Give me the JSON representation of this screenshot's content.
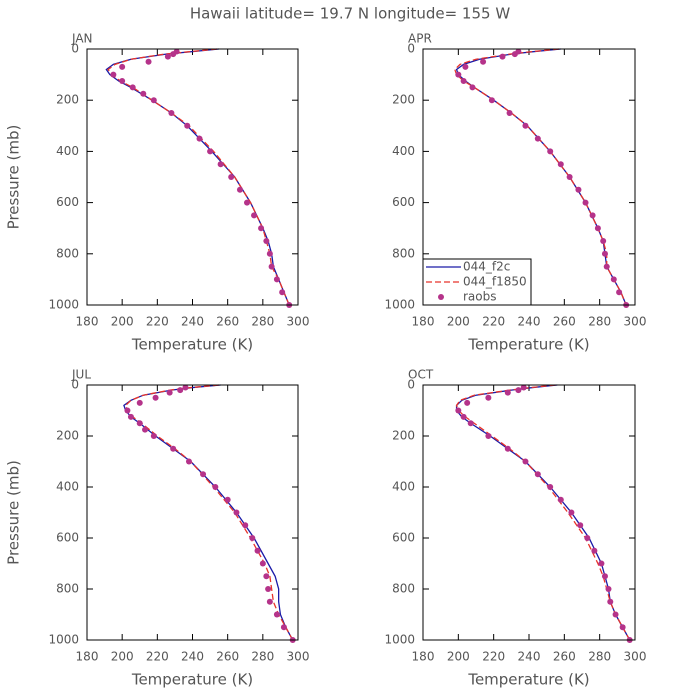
{
  "title": "Hawaii  latitude= 19.7 N longitude= 155 W",
  "chart_data": [
    {
      "type": "profile",
      "title": "JAN",
      "ylabel": "Pressure (mb)",
      "xlabel": "Temperature (K)",
      "xlim": [
        180,
        300
      ],
      "xticks": [
        180,
        200,
        220,
        240,
        260,
        280,
        300
      ],
      "ylim": [
        1000,
        0
      ],
      "yticks": [
        0,
        200,
        400,
        600,
        800,
        1000
      ],
      "series": [
        {
          "color": "#1a1aa8",
          "style": "solid",
          "x": [
            255,
            240,
            225,
            205,
            195,
            191,
            193,
            198,
            205,
            217,
            228,
            237,
            251,
            264,
            273,
            280,
            283,
            285,
            286,
            289,
            292,
            295
          ],
          "y": [
            0,
            10,
            20,
            40,
            60,
            80,
            100,
            125,
            150,
            200,
            250,
            300,
            400,
            500,
            600,
            700,
            750,
            800,
            850,
            900,
            950,
            1000
          ]
        },
        {
          "color": "#e8332a",
          "style": "dashed",
          "x": [
            254,
            239,
            224,
            205,
            196,
            192,
            194,
            199,
            206,
            217,
            228,
            238,
            252,
            264,
            273,
            280,
            282,
            284,
            285,
            289,
            292,
            295
          ],
          "y": [
            0,
            10,
            20,
            40,
            60,
            80,
            100,
            125,
            150,
            200,
            250,
            300,
            400,
            500,
            600,
            700,
            750,
            800,
            850,
            900,
            950,
            1000
          ]
        },
        {
          "color": "#b5338a",
          "style": "marker",
          "x": [
            231,
            229,
            226,
            215,
            200,
            195,
            200,
            206,
            212,
            218,
            228,
            237,
            244,
            250,
            256,
            262,
            267,
            271,
            275,
            279,
            282,
            284,
            285,
            288,
            291,
            295
          ],
          "y": [
            10,
            20,
            30,
            50,
            70,
            100,
            125,
            150,
            175,
            200,
            250,
            300,
            350,
            400,
            450,
            500,
            550,
            600,
            650,
            700,
            750,
            800,
            850,
            900,
            950,
            1000
          ]
        }
      ]
    },
    {
      "type": "profile",
      "title": "APR",
      "xlabel": "Temperature (K)",
      "legend": "lower left",
      "xlim": [
        180,
        300
      ],
      "xticks": [
        180,
        200,
        220,
        240,
        260,
        280,
        300
      ],
      "ylim": [
        1000,
        0
      ],
      "yticks": [
        0,
        200,
        400,
        600,
        800,
        1000
      ],
      "series": [
        {
          "name": "044_f2c",
          "color": "#1a1aa8",
          "style": "solid",
          "x": [
            258,
            243,
            230,
            212,
            203,
            199,
            200,
            204,
            209,
            220,
            230,
            239,
            252,
            263,
            272,
            279,
            282,
            283,
            284,
            288,
            292,
            295
          ],
          "y": [
            0,
            10,
            20,
            40,
            60,
            80,
            100,
            125,
            150,
            200,
            250,
            300,
            400,
            500,
            600,
            700,
            750,
            800,
            850,
            900,
            950,
            1000
          ]
        },
        {
          "name": "044_f1850",
          "color": "#e8332a",
          "style": "dashed",
          "x": [
            257,
            242,
            229,
            210,
            201,
            198,
            199,
            203,
            209,
            220,
            230,
            239,
            252,
            263,
            272,
            279,
            282,
            284,
            284,
            288,
            292,
            295
          ],
          "y": [
            0,
            10,
            20,
            40,
            60,
            80,
            100,
            125,
            150,
            200,
            250,
            300,
            400,
            500,
            600,
            700,
            750,
            800,
            850,
            900,
            950,
            1000
          ]
        },
        {
          "name": "raobs",
          "color": "#b5338a",
          "style": "marker",
          "x": [
            234,
            232,
            225,
            214,
            204,
            200,
            203,
            208,
            219,
            229,
            238,
            245,
            252,
            258,
            263,
            268,
            272,
            276,
            279,
            282,
            283,
            284,
            288,
            291,
            295
          ],
          "y": [
            10,
            20,
            30,
            50,
            70,
            100,
            125,
            150,
            200,
            250,
            300,
            350,
            400,
            450,
            500,
            550,
            600,
            650,
            700,
            750,
            800,
            850,
            900,
            950,
            1000
          ]
        }
      ]
    },
    {
      "type": "profile",
      "title": "JUL",
      "ylabel": "Pressure (mb)",
      "xlabel": "Temperature (K)",
      "xlim": [
        180,
        300
      ],
      "xticks": [
        180,
        200,
        220,
        240,
        260,
        280,
        300
      ],
      "ylim": [
        1000,
        0
      ],
      "yticks": [
        0,
        200,
        400,
        600,
        800,
        1000
      ],
      "series": [
        {
          "color": "#1a1aa8",
          "style": "solid",
          "x": [
            256,
            240,
            228,
            212,
            205,
            201,
            202,
            205,
            210,
            219,
            229,
            239,
            253,
            265,
            275,
            283,
            287,
            289,
            289,
            290,
            293,
            297
          ],
          "y": [
            0,
            10,
            20,
            40,
            60,
            80,
            100,
            125,
            150,
            200,
            250,
            300,
            400,
            500,
            600,
            700,
            750,
            800,
            850,
            900,
            950,
            1000
          ]
        },
        {
          "color": "#e8332a",
          "style": "dashed",
          "x": [
            255,
            239,
            227,
            212,
            205,
            202,
            203,
            206,
            211,
            220,
            230,
            239,
            252,
            264,
            273,
            281,
            284,
            285,
            286,
            289,
            293,
            297
          ],
          "y": [
            0,
            10,
            20,
            40,
            60,
            80,
            100,
            125,
            150,
            200,
            250,
            300,
            400,
            500,
            600,
            700,
            750,
            800,
            850,
            900,
            950,
            1000
          ]
        },
        {
          "color": "#b5338a",
          "style": "marker",
          "x": [
            236,
            233,
            227,
            219,
            210,
            203,
            205,
            210,
            213,
            218,
            229,
            238,
            246,
            253,
            260,
            265,
            270,
            274,
            277,
            280,
            282,
            283,
            284,
            288,
            292,
            297
          ],
          "y": [
            10,
            20,
            30,
            50,
            70,
            100,
            125,
            150,
            175,
            200,
            250,
            300,
            350,
            400,
            450,
            500,
            550,
            600,
            650,
            700,
            750,
            800,
            850,
            900,
            950,
            1000
          ]
        }
      ]
    },
    {
      "type": "profile",
      "title": "OCT",
      "xlabel": "Temperature (K)",
      "xlim": [
        180,
        300
      ],
      "xticks": [
        180,
        200,
        220,
        240,
        260,
        280,
        300
      ],
      "ylim": [
        1000,
        0
      ],
      "yticks": [
        0,
        200,
        400,
        600,
        800,
        1000
      ],
      "series": [
        {
          "color": "#1a1aa8",
          "style": "solid",
          "x": [
            256,
            242,
            230,
            210,
            202,
            199,
            199,
            202,
            207,
            218,
            228,
            238,
            252,
            264,
            274,
            281,
            283,
            285,
            286,
            289,
            293,
            297
          ],
          "y": [
            0,
            10,
            20,
            40,
            60,
            80,
            100,
            125,
            150,
            200,
            250,
            300,
            400,
            500,
            600,
            700,
            750,
            800,
            850,
            900,
            950,
            1000
          ]
        },
        {
          "color": "#e8332a",
          "style": "dashed",
          "x": [
            255,
            241,
            229,
            209,
            201,
            199,
            200,
            204,
            209,
            219,
            229,
            238,
            251,
            262,
            272,
            279,
            282,
            284,
            286,
            289,
            293,
            297
          ],
          "y": [
            0,
            10,
            20,
            40,
            60,
            80,
            100,
            125,
            150,
            200,
            250,
            300,
            400,
            500,
            600,
            700,
            750,
            800,
            850,
            900,
            950,
            1000
          ]
        },
        {
          "color": "#b5338a",
          "style": "marker",
          "x": [
            237,
            234,
            228,
            217,
            205,
            200,
            203,
            207,
            217,
            228,
            238,
            245,
            252,
            258,
            264,
            269,
            273,
            277,
            281,
            283,
            285,
            286,
            289,
            293,
            297
          ],
          "y": [
            10,
            20,
            30,
            50,
            70,
            100,
            125,
            150,
            200,
            250,
            300,
            350,
            400,
            450,
            500,
            550,
            600,
            650,
            700,
            750,
            800,
            850,
            900,
            950,
            1000
          ]
        }
      ]
    }
  ]
}
